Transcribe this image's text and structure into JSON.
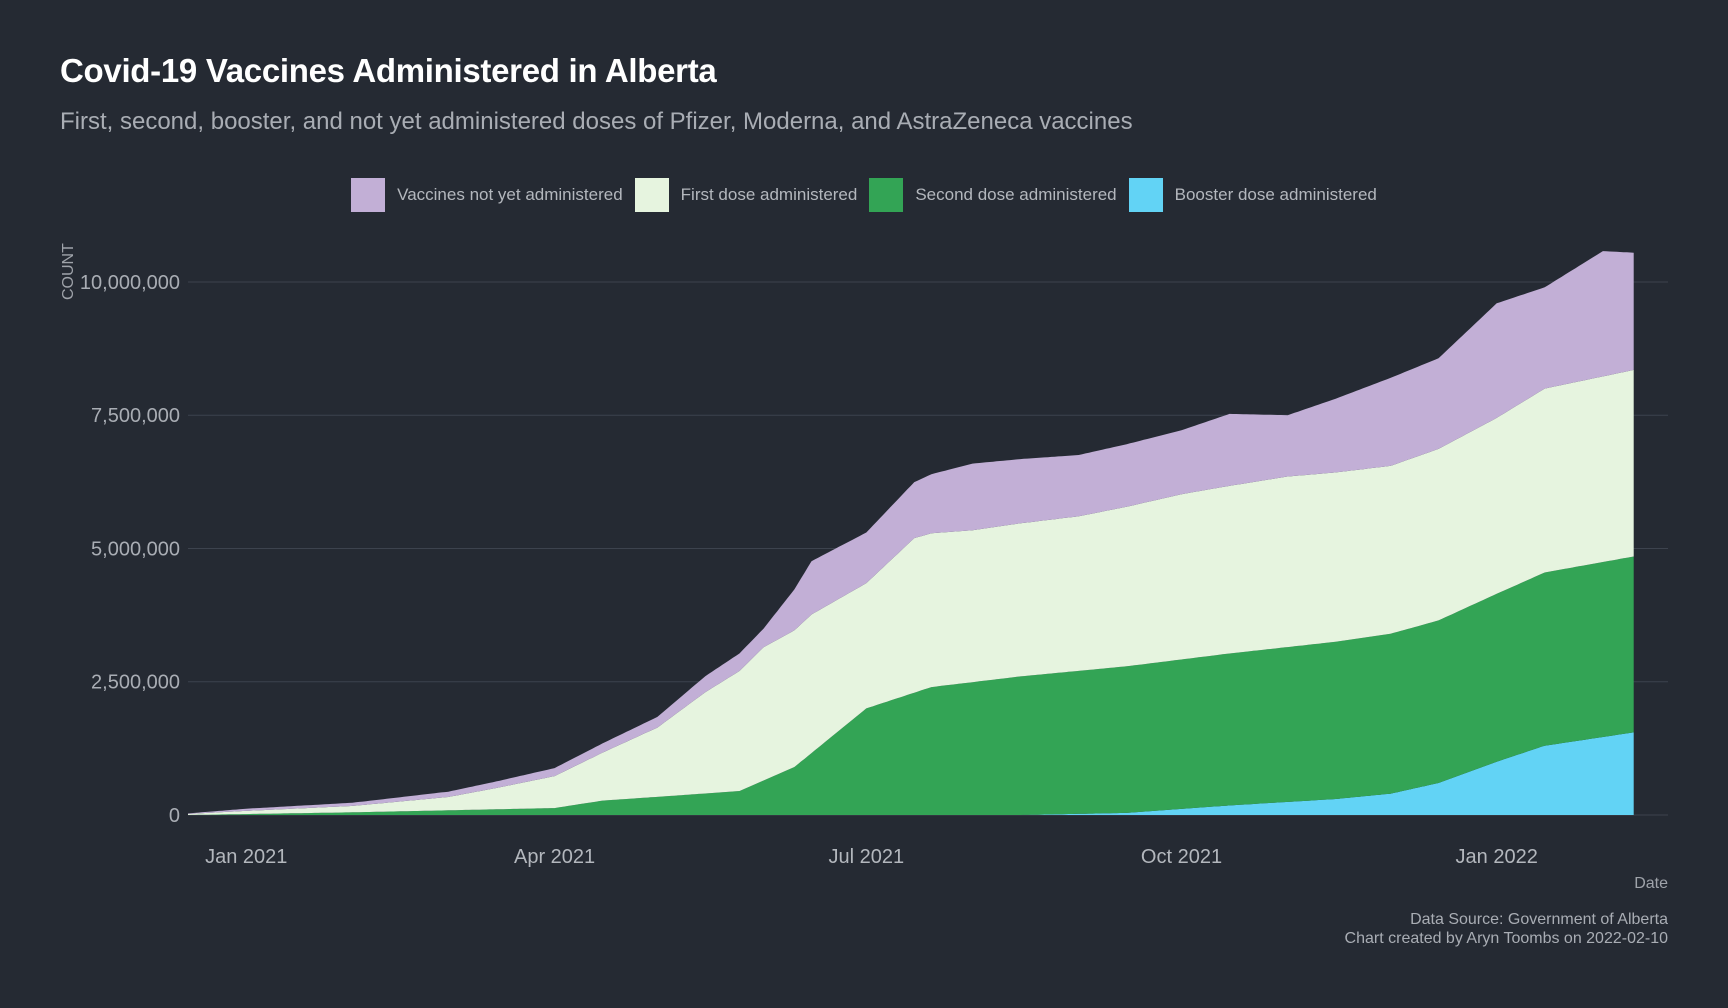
{
  "title": "Covid-19 Vaccines Administered in Alberta",
  "subtitle": "First, second, booster, and not yet administered doses of Pfizer, Moderna, and AstraZeneca vaccines",
  "caption": {
    "line1": "Data Source: Government of Alberta",
    "line2": "Chart created by Aryn Toombs on 2022-02-10"
  },
  "legend": [
    {
      "label": "Vaccines not yet administered",
      "color": "#c2afd6"
    },
    {
      "label": "First dose administered",
      "color": "#e6f4df"
    },
    {
      "label": "Second dose administered",
      "color": "#33a455"
    },
    {
      "label": "Booster dose administered",
      "color": "#62d3f5"
    }
  ],
  "chart_data": {
    "type": "area",
    "stacked": true,
    "xlabel": "Date",
    "ylabel": "COUNT",
    "ylim": [
      0,
      10600000
    ],
    "xlim": [
      "2020-12-15",
      "2022-02-20"
    ],
    "x_ticks": [
      {
        "label": "Jan 2021",
        "date": "2021-01-01"
      },
      {
        "label": "Apr 2021",
        "date": "2021-04-01"
      },
      {
        "label": "Jul 2021",
        "date": "2021-07-01"
      },
      {
        "label": "Oct 2021",
        "date": "2021-10-01"
      },
      {
        "label": "Jan 2022",
        "date": "2022-01-01"
      }
    ],
    "y_ticks": [
      {
        "label": "0",
        "value": 0
      },
      {
        "label": "2,500,000",
        "value": 2500000
      },
      {
        "label": "5,000,000",
        "value": 5000000
      },
      {
        "label": "7,500,000",
        "value": 7500000
      },
      {
        "label": "10,000,000",
        "value": 10000000
      }
    ],
    "grid": true,
    "legend_position": "top",
    "series": [
      {
        "name": "Booster dose administered",
        "points": [
          [
            "2020-12-15",
            0
          ],
          [
            "2021-08-15",
            0
          ],
          [
            "2021-09-15",
            40000
          ],
          [
            "2021-10-15",
            180000
          ],
          [
            "2021-11-15",
            300000
          ],
          [
            "2021-12-01",
            400000
          ],
          [
            "2021-12-15",
            600000
          ],
          [
            "2022-01-01",
            1000000
          ],
          [
            "2022-01-15",
            1300000
          ],
          [
            "2022-02-10",
            1550000
          ]
        ]
      },
      {
        "name": "Second dose administered",
        "points": [
          [
            "2020-12-15",
            0
          ],
          [
            "2021-02-01",
            50000
          ],
          [
            "2021-04-01",
            130000
          ],
          [
            "2021-04-15",
            270000
          ],
          [
            "2021-05-01",
            340000
          ],
          [
            "2021-05-25",
            450000
          ],
          [
            "2021-06-10",
            900000
          ],
          [
            "2021-07-01",
            2000000
          ],
          [
            "2021-07-20",
            2400000
          ],
          [
            "2021-08-15",
            2600000
          ],
          [
            "2021-09-15",
            2750000
          ],
          [
            "2021-10-15",
            2850000
          ],
          [
            "2021-11-15",
            2950000
          ],
          [
            "2021-12-01",
            3000000
          ],
          [
            "2021-12-15",
            3050000
          ],
          [
            "2022-01-01",
            3150000
          ],
          [
            "2022-01-15",
            3250000
          ],
          [
            "2022-02-10",
            3300000
          ]
        ]
      },
      {
        "name": "First dose administered",
        "points": [
          [
            "2020-12-15",
            20000
          ],
          [
            "2021-01-01",
            60000
          ],
          [
            "2021-02-01",
            120000
          ],
          [
            "2021-03-01",
            250000
          ],
          [
            "2021-03-15",
            400000
          ],
          [
            "2021-04-01",
            600000
          ],
          [
            "2021-04-15",
            900000
          ],
          [
            "2021-05-01",
            1300000
          ],
          [
            "2021-05-15",
            1900000
          ],
          [
            "2021-06-01",
            2500000
          ],
          [
            "2021-06-15",
            2600000
          ],
          [
            "2021-07-01",
            2350000
          ],
          [
            "2021-07-15",
            2900000
          ],
          [
            "2021-08-01",
            2850000
          ],
          [
            "2021-09-01",
            2900000
          ],
          [
            "2021-10-01",
            3100000
          ],
          [
            "2021-11-01",
            3200000
          ],
          [
            "2021-12-01",
            3150000
          ],
          [
            "2022-01-01",
            3300000
          ],
          [
            "2022-01-15",
            3450000
          ],
          [
            "2022-02-10",
            3500000
          ]
        ]
      },
      {
        "name": "Vaccines not yet administered",
        "points": [
          [
            "2020-12-15",
            10000
          ],
          [
            "2021-01-01",
            40000
          ],
          [
            "2021-02-01",
            60000
          ],
          [
            "2021-03-01",
            100000
          ],
          [
            "2021-04-01",
            150000
          ],
          [
            "2021-05-01",
            200000
          ],
          [
            "2021-05-15",
            300000
          ],
          [
            "2021-06-01",
            350000
          ],
          [
            "2021-06-15",
            1000000
          ],
          [
            "2021-07-01",
            950000
          ],
          [
            "2021-07-15",
            1050000
          ],
          [
            "2021-08-01",
            1250000
          ],
          [
            "2021-09-01",
            1150000
          ],
          [
            "2021-10-01",
            1200000
          ],
          [
            "2021-10-15",
            1350000
          ],
          [
            "2021-11-01",
            1150000
          ],
          [
            "2021-12-01",
            1650000
          ],
          [
            "2021-12-15",
            1700000
          ],
          [
            "2022-01-01",
            2150000
          ],
          [
            "2022-01-15",
            1900000
          ],
          [
            "2022-02-01",
            2350000
          ],
          [
            "2022-02-10",
            2200000
          ]
        ]
      }
    ]
  }
}
